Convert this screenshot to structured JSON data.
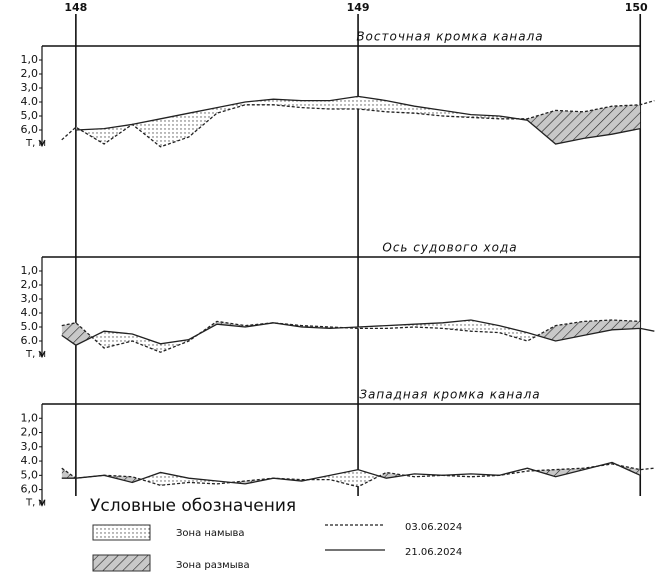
{
  "chart_data": [
    {
      "type": "line",
      "title": "Восточная кромка канала",
      "y_label": "Т, м",
      "xlim": [
        147.88,
        150.07
      ],
      "xticks": [
        148,
        149,
        150
      ],
      "ylim": [
        0,
        7.5
      ],
      "yticks": [
        {
          "value": 1,
          "label": "1,0"
        },
        {
          "value": 2,
          "label": "2,0"
        },
        {
          "value": 3,
          "label": "3,0"
        },
        {
          "value": 4,
          "label": "4.0"
        },
        {
          "value": 5,
          "label": "5,0"
        },
        {
          "value": 6,
          "label": "6,0"
        }
      ],
      "x": [
        147.95,
        148.0,
        148.1,
        148.2,
        148.3,
        148.4,
        148.5,
        148.6,
        148.7,
        148.8,
        148.9,
        149.0,
        149.1,
        149.2,
        149.3,
        149.4,
        149.5,
        149.6,
        149.7,
        149.8,
        149.9,
        150.0,
        150.05
      ],
      "series": [
        {
          "name": "03.06.2024",
          "style": "dashed",
          "color": "#222",
          "values": [
            6.7,
            5.8,
            7.0,
            5.6,
            7.2,
            6.5,
            4.8,
            4.2,
            4.2,
            4.4,
            4.5,
            4.5,
            4.7,
            4.8,
            5.0,
            5.1,
            5.2,
            5.2,
            4.6,
            4.7,
            4.3,
            4.2,
            3.9
          ]
        },
        {
          "name": "21.06.2024",
          "style": "solid",
          "color": "#222",
          "values": [
            null,
            6.0,
            5.9,
            5.6,
            5.2,
            4.8,
            4.4,
            4.0,
            3.8,
            3.9,
            3.9,
            3.6,
            3.9,
            4.3,
            4.6,
            4.9,
            5.0,
            5.3,
            7.0,
            6.6,
            6.3,
            5.9,
            null
          ]
        }
      ]
    },
    {
      "type": "line",
      "title": "Ось судового хода",
      "y_label": "Т, м",
      "xlim": [
        147.88,
        150.07
      ],
      "ylim": [
        0,
        7.5
      ],
      "yticks": [
        {
          "value": 1,
          "label": "1,0"
        },
        {
          "value": 2,
          "label": "2,0"
        },
        {
          "value": 3,
          "label": "3,0"
        },
        {
          "value": 4,
          "label": "4.0"
        },
        {
          "value": 5,
          "label": "5.0"
        },
        {
          "value": 6,
          "label": "6.0"
        }
      ],
      "x": [
        147.95,
        148.0,
        148.1,
        148.2,
        148.3,
        148.4,
        148.5,
        148.6,
        148.7,
        148.8,
        148.9,
        149.0,
        149.1,
        149.2,
        149.3,
        149.4,
        149.5,
        149.6,
        149.7,
        149.8,
        149.9,
        150.0,
        150.05
      ],
      "series": [
        {
          "style": "dashed",
          "color": "#222",
          "values": [
            4.9,
            4.7,
            6.5,
            6.0,
            6.8,
            6.0,
            4.6,
            4.9,
            4.7,
            4.9,
            5.0,
            5.1,
            5.1,
            5.0,
            5.1,
            5.3,
            5.4,
            6.0,
            4.9,
            4.6,
            4.5,
            4.6,
            null
          ]
        },
        {
          "style": "solid",
          "color": "#222",
          "values": [
            5.6,
            6.3,
            5.3,
            5.5,
            6.2,
            5.9,
            4.8,
            5.0,
            4.7,
            5.0,
            5.1,
            5.0,
            4.9,
            4.8,
            4.7,
            4.5,
            4.9,
            5.4,
            6.0,
            5.6,
            5.2,
            5.1,
            5.3
          ]
        }
      ]
    },
    {
      "type": "line",
      "title": "Западная кромка канала",
      "y_label": "Т, м",
      "xlim": [
        147.88,
        150.07
      ],
      "ylim": [
        0,
        7.5
      ],
      "yticks": [
        {
          "value": 1,
          "label": "1,0"
        },
        {
          "value": 2,
          "label": "2,0"
        },
        {
          "value": 3,
          "label": "3,0"
        },
        {
          "value": 4,
          "label": "4.0"
        },
        {
          "value": 5,
          "label": "5,0"
        },
        {
          "value": 6,
          "label": "6,0"
        }
      ],
      "x": [
        147.95,
        148.0,
        148.1,
        148.2,
        148.3,
        148.4,
        148.5,
        148.6,
        148.7,
        148.8,
        148.9,
        149.0,
        149.1,
        149.2,
        149.3,
        149.4,
        149.5,
        149.6,
        149.7,
        149.8,
        149.9,
        150.0,
        150.05
      ],
      "series": [
        {
          "style": "dashed",
          "color": "#222",
          "values": [
            4.5,
            5.2,
            5.0,
            5.1,
            5.7,
            5.5,
            5.6,
            5.4,
            5.2,
            5.3,
            5.3,
            5.8,
            4.8,
            5.1,
            5.0,
            5.1,
            5.0,
            4.7,
            4.6,
            4.5,
            4.2,
            4.6,
            4.5
          ]
        },
        {
          "style": "solid",
          "color": "#222",
          "values": [
            5.2,
            5.2,
            5.0,
            5.5,
            4.8,
            5.2,
            5.4,
            5.6,
            5.2,
            5.4,
            5.0,
            4.6,
            5.2,
            4.9,
            5.0,
            4.9,
            5.0,
            4.5,
            5.1,
            4.6,
            4.1,
            5.0,
            null
          ]
        }
      ]
    }
  ],
  "legend": {
    "title": "Условные обозначения",
    "zones": [
      "Зона намыва",
      "Зона размыва"
    ]
  }
}
